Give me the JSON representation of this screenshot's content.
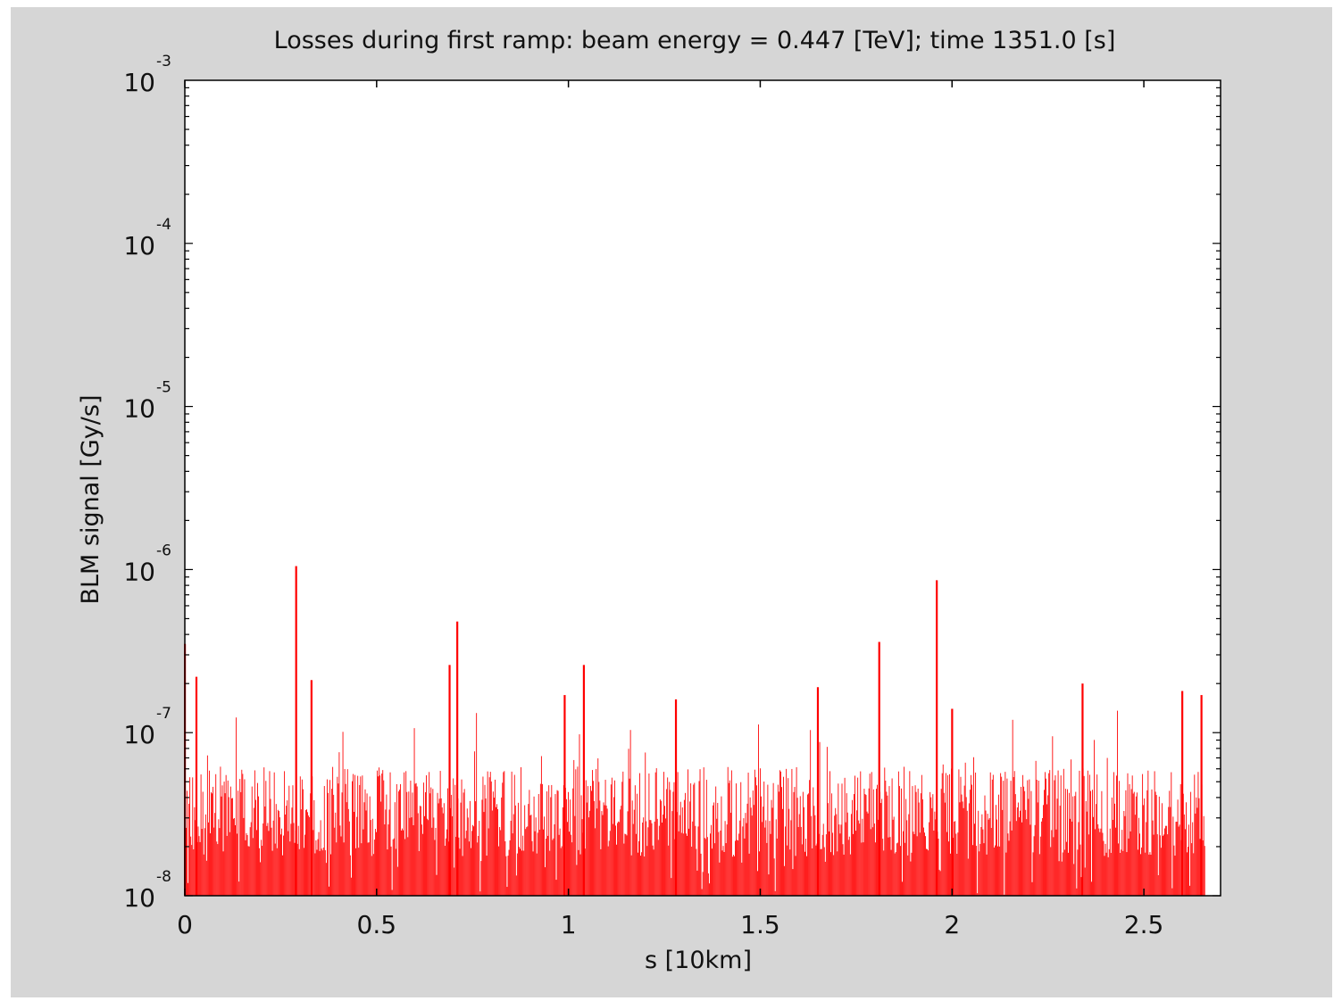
{
  "chart_data": {
    "type": "bar",
    "title": "Losses during first ramp: beam energy = 0.447 [TeV]; time 1351.0 [s]",
    "xlabel": "s [10km]",
    "ylabel": "BLM signal [Gy/s]",
    "xlim": [
      0,
      2.7
    ],
    "ylim": [
      1e-08,
      0.001
    ],
    "yscale": "log",
    "grid": false,
    "legend": "none",
    "bar_color": "#ff0000",
    "x_ticks": [
      {
        "value": 0,
        "label": "0"
      },
      {
        "value": 0.5,
        "label": "0.5"
      },
      {
        "value": 1,
        "label": "1"
      },
      {
        "value": 1.5,
        "label": "1.5"
      },
      {
        "value": 2,
        "label": "2"
      },
      {
        "value": 2.5,
        "label": "2.5"
      }
    ],
    "y_ticks": [
      {
        "value": 1e-08,
        "base": "10",
        "exp": "-8"
      },
      {
        "value": 1e-07,
        "base": "10",
        "exp": "-7"
      },
      {
        "value": 1e-06,
        "base": "10",
        "exp": "-6"
      },
      {
        "value": 1e-05,
        "base": "10",
        "exp": "-5"
      },
      {
        "value": 0.0001,
        "base": "10",
        "exp": "-4"
      },
      {
        "value": 0.001,
        "base": "10",
        "exp": "-3"
      }
    ],
    "peaks": [
      {
        "x": 0.0,
        "y": 3.5e-07
      },
      {
        "x": 0.03,
        "y": 2.2e-07
      },
      {
        "x": 0.29,
        "y": 1.05e-06
      },
      {
        "x": 0.33,
        "y": 2.1e-07
      },
      {
        "x": 0.71,
        "y": 4.8e-07
      },
      {
        "x": 0.69,
        "y": 2.6e-07
      },
      {
        "x": 0.99,
        "y": 1.7e-07
      },
      {
        "x": 1.04,
        "y": 2.6e-07
      },
      {
        "x": 1.28,
        "y": 1.6e-07
      },
      {
        "x": 1.65,
        "y": 1.9e-07
      },
      {
        "x": 1.81,
        "y": 3.6e-07
      },
      {
        "x": 1.96,
        "y": 8.6e-07
      },
      {
        "x": 2.0,
        "y": 1.4e-07
      },
      {
        "x": 2.34,
        "y": 2e-07
      },
      {
        "x": 2.6,
        "y": 1.8e-07
      },
      {
        "x": 2.65,
        "y": 1.7e-07
      }
    ],
    "data_extent": [
      0,
      2.66
    ],
    "baseline_level": 3.5e-08
  }
}
